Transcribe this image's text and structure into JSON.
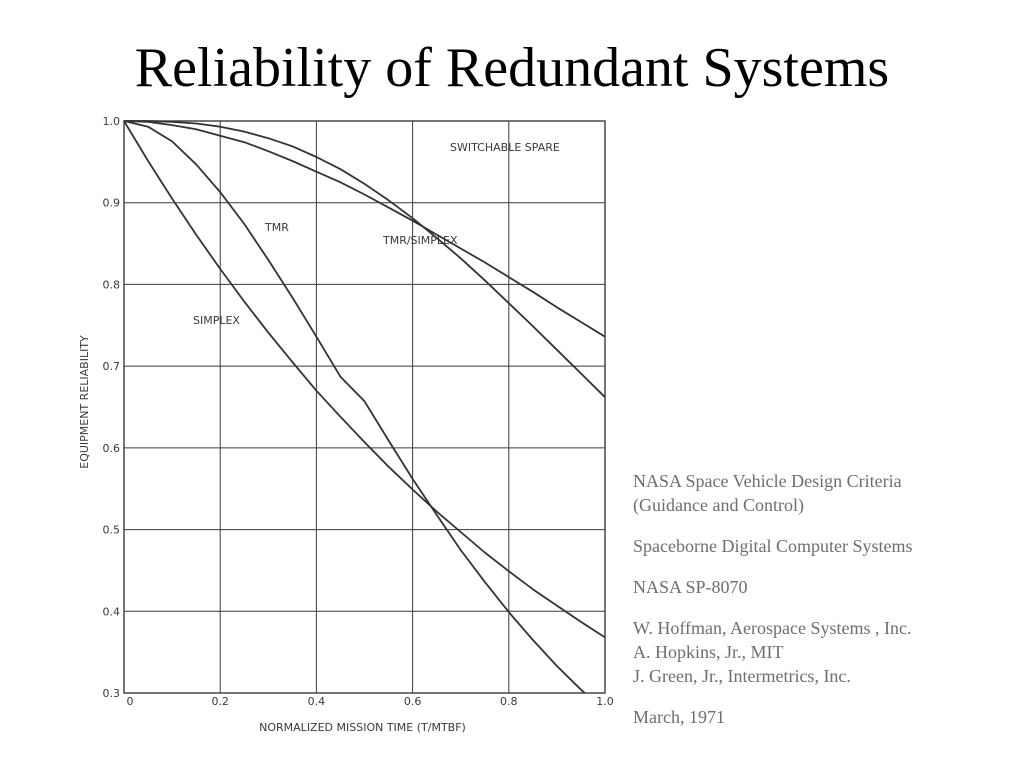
{
  "slide": {
    "title": "Reliability of Redundant Systems"
  },
  "references": {
    "doc_title_line1": "NASA Space Vehicle Design Criteria",
    "doc_title_line2": "(Guidance and Control)",
    "subject": "Spaceborne Digital Computer Systems",
    "doc_number": "NASA SP-8070",
    "author1": "W. Hoffman, Aerospace Systems , Inc.",
    "author2": "A. Hopkins, Jr., MIT",
    "author3": "J. Green, Jr., Intermetrics, Inc.",
    "date": "March, 1971"
  },
  "chart_data": {
    "type": "line",
    "xlabel": "NORMALIZED MISSION TIME (T/MTBF)",
    "ylabel": "EQUIPMENT RELIABILITY",
    "xlim": [
      0,
      1.0
    ],
    "ylim": [
      0.3,
      1.0
    ],
    "xticks": [
      "0",
      "0.2",
      "0.4",
      "0.6",
      "0.8",
      "1.0"
    ],
    "yticks": [
      "0.3",
      "0.4",
      "0.5",
      "0.6",
      "0.7",
      "0.8",
      "0.9",
      "1.0"
    ],
    "grid": true,
    "series": [
      {
        "name": "SIMPLEX",
        "x": [
          0,
          0.05,
          0.1,
          0.15,
          0.2,
          0.25,
          0.3,
          0.35,
          0.4,
          0.45,
          0.5,
          0.55,
          0.6,
          0.65,
          0.7,
          0.75,
          0.8,
          0.85,
          0.9,
          0.95,
          1.0
        ],
        "y": [
          1.0,
          0.951,
          0.905,
          0.861,
          0.819,
          0.779,
          0.741,
          0.705,
          0.67,
          0.638,
          0.607,
          0.577,
          0.549,
          0.522,
          0.497,
          0.472,
          0.449,
          0.427,
          0.407,
          0.387,
          0.368
        ]
      },
      {
        "name": "TMR",
        "x": [
          0,
          0.05,
          0.1,
          0.15,
          0.2,
          0.25,
          0.3,
          0.35,
          0.4,
          0.45,
          0.5,
          0.55,
          0.6,
          0.65,
          0.7,
          0.75,
          0.8,
          0.85,
          0.9,
          0.95,
          1.0
        ],
        "y": [
          1.0,
          0.993,
          0.975,
          0.947,
          0.913,
          0.874,
          0.83,
          0.784,
          0.736,
          0.687,
          0.657,
          0.609,
          0.562,
          0.518,
          0.475,
          0.436,
          0.399,
          0.365,
          0.333,
          0.304,
          0.278
        ]
      },
      {
        "name": "TMR/SIMPLEX",
        "x": [
          0,
          0.05,
          0.1,
          0.15,
          0.2,
          0.25,
          0.3,
          0.35,
          0.4,
          0.45,
          0.5,
          0.55,
          0.6,
          0.65,
          0.7,
          0.75,
          0.8,
          0.85,
          0.9,
          0.95,
          1.0
        ],
        "y": [
          1.0,
          1.0,
          0.999,
          0.997,
          0.993,
          0.987,
          0.979,
          0.969,
          0.956,
          0.941,
          0.923,
          0.903,
          0.881,
          0.857,
          0.832,
          0.805,
          0.777,
          0.749,
          0.72,
          0.691,
          0.662
        ]
      },
      {
        "name": "SWITCHABLE SPARE",
        "x": [
          0,
          0.05,
          0.1,
          0.15,
          0.2,
          0.25,
          0.3,
          0.35,
          0.4,
          0.45,
          0.5,
          0.55,
          0.6,
          0.65,
          0.7,
          0.75,
          0.8,
          0.85,
          0.9,
          0.95,
          1.0
        ],
        "y": [
          1.0,
          0.999,
          0.995,
          0.99,
          0.982,
          0.974,
          0.963,
          0.951,
          0.938,
          0.925,
          0.91,
          0.894,
          0.878,
          0.861,
          0.844,
          0.827,
          0.809,
          0.791,
          0.772,
          0.754,
          0.736
        ]
      }
    ]
  }
}
